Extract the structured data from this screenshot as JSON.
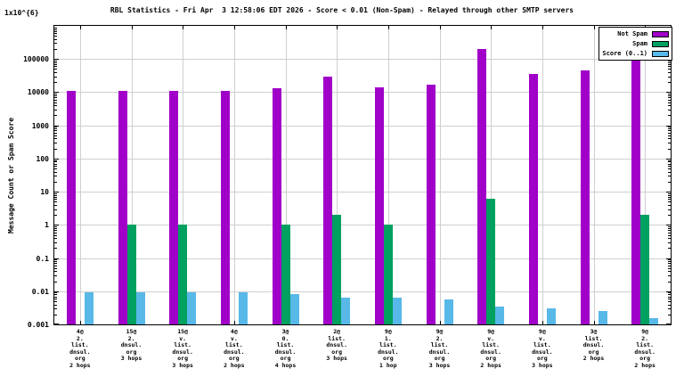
{
  "chart_data": {
    "type": "bar",
    "title": "RBL Statistics - Fri Apr  3 12:58:06 EDT 2026 - Score < 0.01 (Non-Spam) - Relayed through other SMTP servers",
    "ylabel": "Message Count or Spam Score",
    "y_top_label": "1x10^{6}",
    "yscale": "log",
    "ylim": [
      0.001,
      1000000
    ],
    "grid": true,
    "legend_position": "top-right",
    "y_ticks": [
      {
        "label": "0.001",
        "value": 0.001
      },
      {
        "label": "0.01",
        "value": 0.01
      },
      {
        "label": "0.1",
        "value": 0.1
      },
      {
        "label": "1",
        "value": 1
      },
      {
        "label": "10",
        "value": 10
      },
      {
        "label": "100",
        "value": 100
      },
      {
        "label": "1000",
        "value": 1000
      },
      {
        "label": "10000",
        "value": 10000
      },
      {
        "label": "100000",
        "value": 100000
      }
    ],
    "categories": [
      [
        "4@",
        "2.",
        "list.",
        "dnsul.",
        "org",
        "2 hops"
      ],
      [
        "15@",
        "2.",
        "dnsul.",
        "org",
        "3 hops"
      ],
      [
        "15@",
        "v.",
        "list.",
        "dnsul.",
        "org",
        "3 hops"
      ],
      [
        "4@",
        "v.",
        "list.",
        "dnsul.",
        "org",
        "2 hops"
      ],
      [
        "3@",
        "0.",
        "list.",
        "dnsul.",
        "org",
        "4 hops"
      ],
      [
        "2@",
        "list.",
        "dnsul.",
        "org",
        "3 hops"
      ],
      [
        "9@",
        "1.",
        "list.",
        "dnsul.",
        "org",
        "1 hop"
      ],
      [
        "9@",
        "2.",
        "list.",
        "dnsul.",
        "org",
        "3 hops"
      ],
      [
        "9@",
        "v.",
        "list.",
        "dnsul.",
        "org",
        "2 hops"
      ],
      [
        "9@",
        "v.",
        "list.",
        "dnsul.",
        "org",
        "3 hops"
      ],
      [
        "3@",
        "list.",
        "dnsul.",
        "org",
        "2 hops"
      ],
      [
        "9@",
        "2.",
        "list.",
        "dnsul.",
        "org",
        "2 hops"
      ]
    ],
    "series": [
      {
        "name": "Not Spam",
        "color": "#a000c8",
        "values": [
          11000,
          11000,
          11000,
          11000,
          13000,
          30000,
          14000,
          17000,
          200000,
          35000,
          45000,
          140000
        ]
      },
      {
        "name": "Spam",
        "color": "#00a060",
        "values": [
          null,
          1,
          1,
          null,
          1,
          2,
          1,
          null,
          6,
          null,
          null,
          2
        ]
      },
      {
        "name": "Score (0..1)",
        "color": "#58b8e8",
        "values": [
          0.009,
          0.009,
          0.009,
          0.009,
          0.008,
          0.0065,
          0.0065,
          0.0055,
          0.0035,
          0.003,
          0.0025,
          0.0015
        ]
      }
    ]
  }
}
